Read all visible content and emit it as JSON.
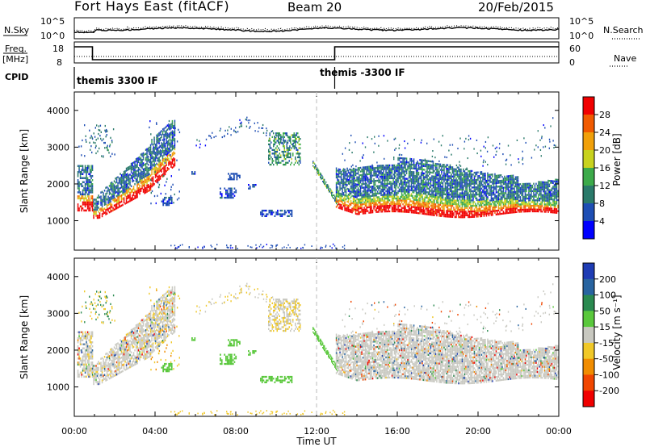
{
  "header": {
    "station": "Fort Hays East (fitACF)",
    "beam": "Beam 20",
    "date": "20/Feb/2015"
  },
  "noise_panel": {
    "left_label": "N.Sky",
    "right_label": "N.Search",
    "left_ticks": [
      "10^5",
      "10^0"
    ],
    "right_ticks": [
      "10^5",
      "10^0"
    ]
  },
  "freq_panel": {
    "left_label_1": "Freq.",
    "left_label_2": "[MHz]",
    "right_label": "Nave",
    "left_ticks": [
      "18",
      "8"
    ],
    "right_ticks": [
      "60",
      "0"
    ]
  },
  "cpid_panel": {
    "label": "CPID",
    "segments": [
      "themis 3300 IF",
      "themis -3300 IF"
    ]
  },
  "power_panel": {
    "ylabel": "Slant Range [km]",
    "colorbar_label": "Power [dB]",
    "colorbar_ticks": [
      "28",
      "24",
      "20",
      "16",
      "12",
      "8",
      "4"
    ],
    "colors": [
      "#0000ff",
      "#1e4eb4",
      "#2a7a6a",
      "#3caa4a",
      "#c8d21e",
      "#f0a00a",
      "#f05a00",
      "#f00000"
    ]
  },
  "velocity_panel": {
    "ylabel": "Slant Range [km]",
    "colorbar_label": "Velocity [m s⁻¹]",
    "colorbar_ticks": [
      "200",
      "100",
      "50",
      "15",
      "-15",
      "-50",
      "-100",
      "-200"
    ],
    "colors": [
      "#1e3cb4",
      "#2864a0",
      "#2a8a50",
      "#5ac83c",
      "#c8c8c0",
      "#f0c828",
      "#f08c00",
      "#f04600",
      "#f00000"
    ]
  },
  "x_axis": {
    "label": "Time UT",
    "ticks": [
      "00:00",
      "04:00",
      "08:00",
      "12:00",
      "16:00",
      "20:00",
      "00:00"
    ]
  },
  "chart_data": {
    "type": "heatmap",
    "x_range_hours": [
      0,
      24
    ],
    "y_range_km": [
      200,
      4500
    ],
    "y_ticks_km": [
      1000,
      2000,
      3000,
      4000
    ],
    "x_ticks_hours": [
      0,
      4,
      8,
      12,
      16,
      20,
      24
    ],
    "cpid_change_hours": 12.9,
    "freq_step": {
      "high_mhz": 18,
      "low_mhz": 11,
      "low_from_hours": 0.9,
      "low_to_hours": 12.9
    },
    "power_db_range": [
      0,
      30
    ],
    "velocity_range": [
      -250,
      250
    ],
    "echo_regions": [
      {
        "name": "morning-band",
        "t0": 0.2,
        "t1": 5.0,
        "r0": 1200,
        "r1": 3700,
        "power": 14,
        "velocity": 0
      },
      {
        "name": "afternoon-band",
        "t0": 13.0,
        "t1": 24.0,
        "r0": 1150,
        "r1": 2600,
        "power": 18,
        "velocity": 0
      },
      {
        "name": "midday-patch",
        "t0": 9.5,
        "t1": 11.2,
        "r0": 1200,
        "r1": 3400,
        "power": 6,
        "velocity": 30
      },
      {
        "name": "descending-streak",
        "t0": 11.8,
        "t1": 13.0,
        "r0": 1450,
        "r1": 2500,
        "power": 8,
        "velocity": 40
      }
    ]
  }
}
